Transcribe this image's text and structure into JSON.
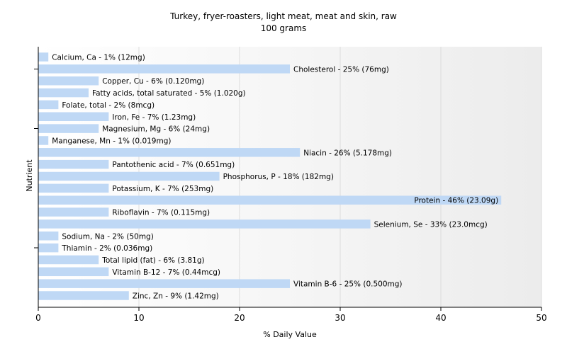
{
  "chart_data": {
    "type": "bar",
    "orientation": "horizontal",
    "title": "Turkey, fryer-roasters, light meat, meat and skin, raw",
    "subtitle": "100 grams",
    "xlabel": "% Daily Value",
    "ylabel": "Nutrient",
    "xlim": [
      0,
      50
    ],
    "xticks": [
      0,
      10,
      20,
      30,
      40,
      50
    ],
    "grid": true,
    "bar_color": "#bfd8f5",
    "categories": [
      "Calcium, Ca",
      "Cholesterol",
      "Copper, Cu",
      "Fatty acids, total saturated",
      "Folate, total",
      "Iron, Fe",
      "Magnesium, Mg",
      "Manganese, Mn",
      "Niacin",
      "Pantothenic acid",
      "Phosphorus, P",
      "Potassium, K",
      "Protein",
      "Riboflavin",
      "Selenium, Se",
      "Sodium, Na",
      "Thiamin",
      "Total lipid (fat)",
      "Vitamin B-12",
      "Vitamin B-6",
      "Zinc, Zn"
    ],
    "values": [
      1,
      25,
      6,
      5,
      2,
      7,
      6,
      1,
      26,
      7,
      18,
      7,
      46,
      7,
      33,
      2,
      2,
      6,
      7,
      25,
      9
    ],
    "labels": [
      "Calcium, Ca - 1% (12mg)",
      "Cholesterol - 25% (76mg)",
      "Copper, Cu - 6% (0.120mg)",
      "Fatty acids, total saturated - 5% (1.020g)",
      "Folate, total - 2% (8mcg)",
      "Iron, Fe - 7% (1.23mg)",
      "Magnesium, Mg - 6% (24mg)",
      "Manganese, Mn - 1% (0.019mg)",
      "Niacin - 26% (5.178mg)",
      "Pantothenic acid - 7% (0.651mg)",
      "Phosphorus, P - 18% (182mg)",
      "Potassium, K - 7% (253mg)",
      "Protein - 46% (23.09g)",
      "Riboflavin - 7% (0.115mg)",
      "Selenium, Se - 33% (23.0mcg)",
      "Sodium, Na - 2% (50mg)",
      "Thiamin - 2% (0.036mg)",
      "Total lipid (fat) - 6% (3.81g)",
      "Vitamin B-12 - 7% (0.44mcg)",
      "Vitamin B-6 - 25% (0.500mg)",
      "Zinc, Zn - 9% (1.42mg)"
    ]
  }
}
